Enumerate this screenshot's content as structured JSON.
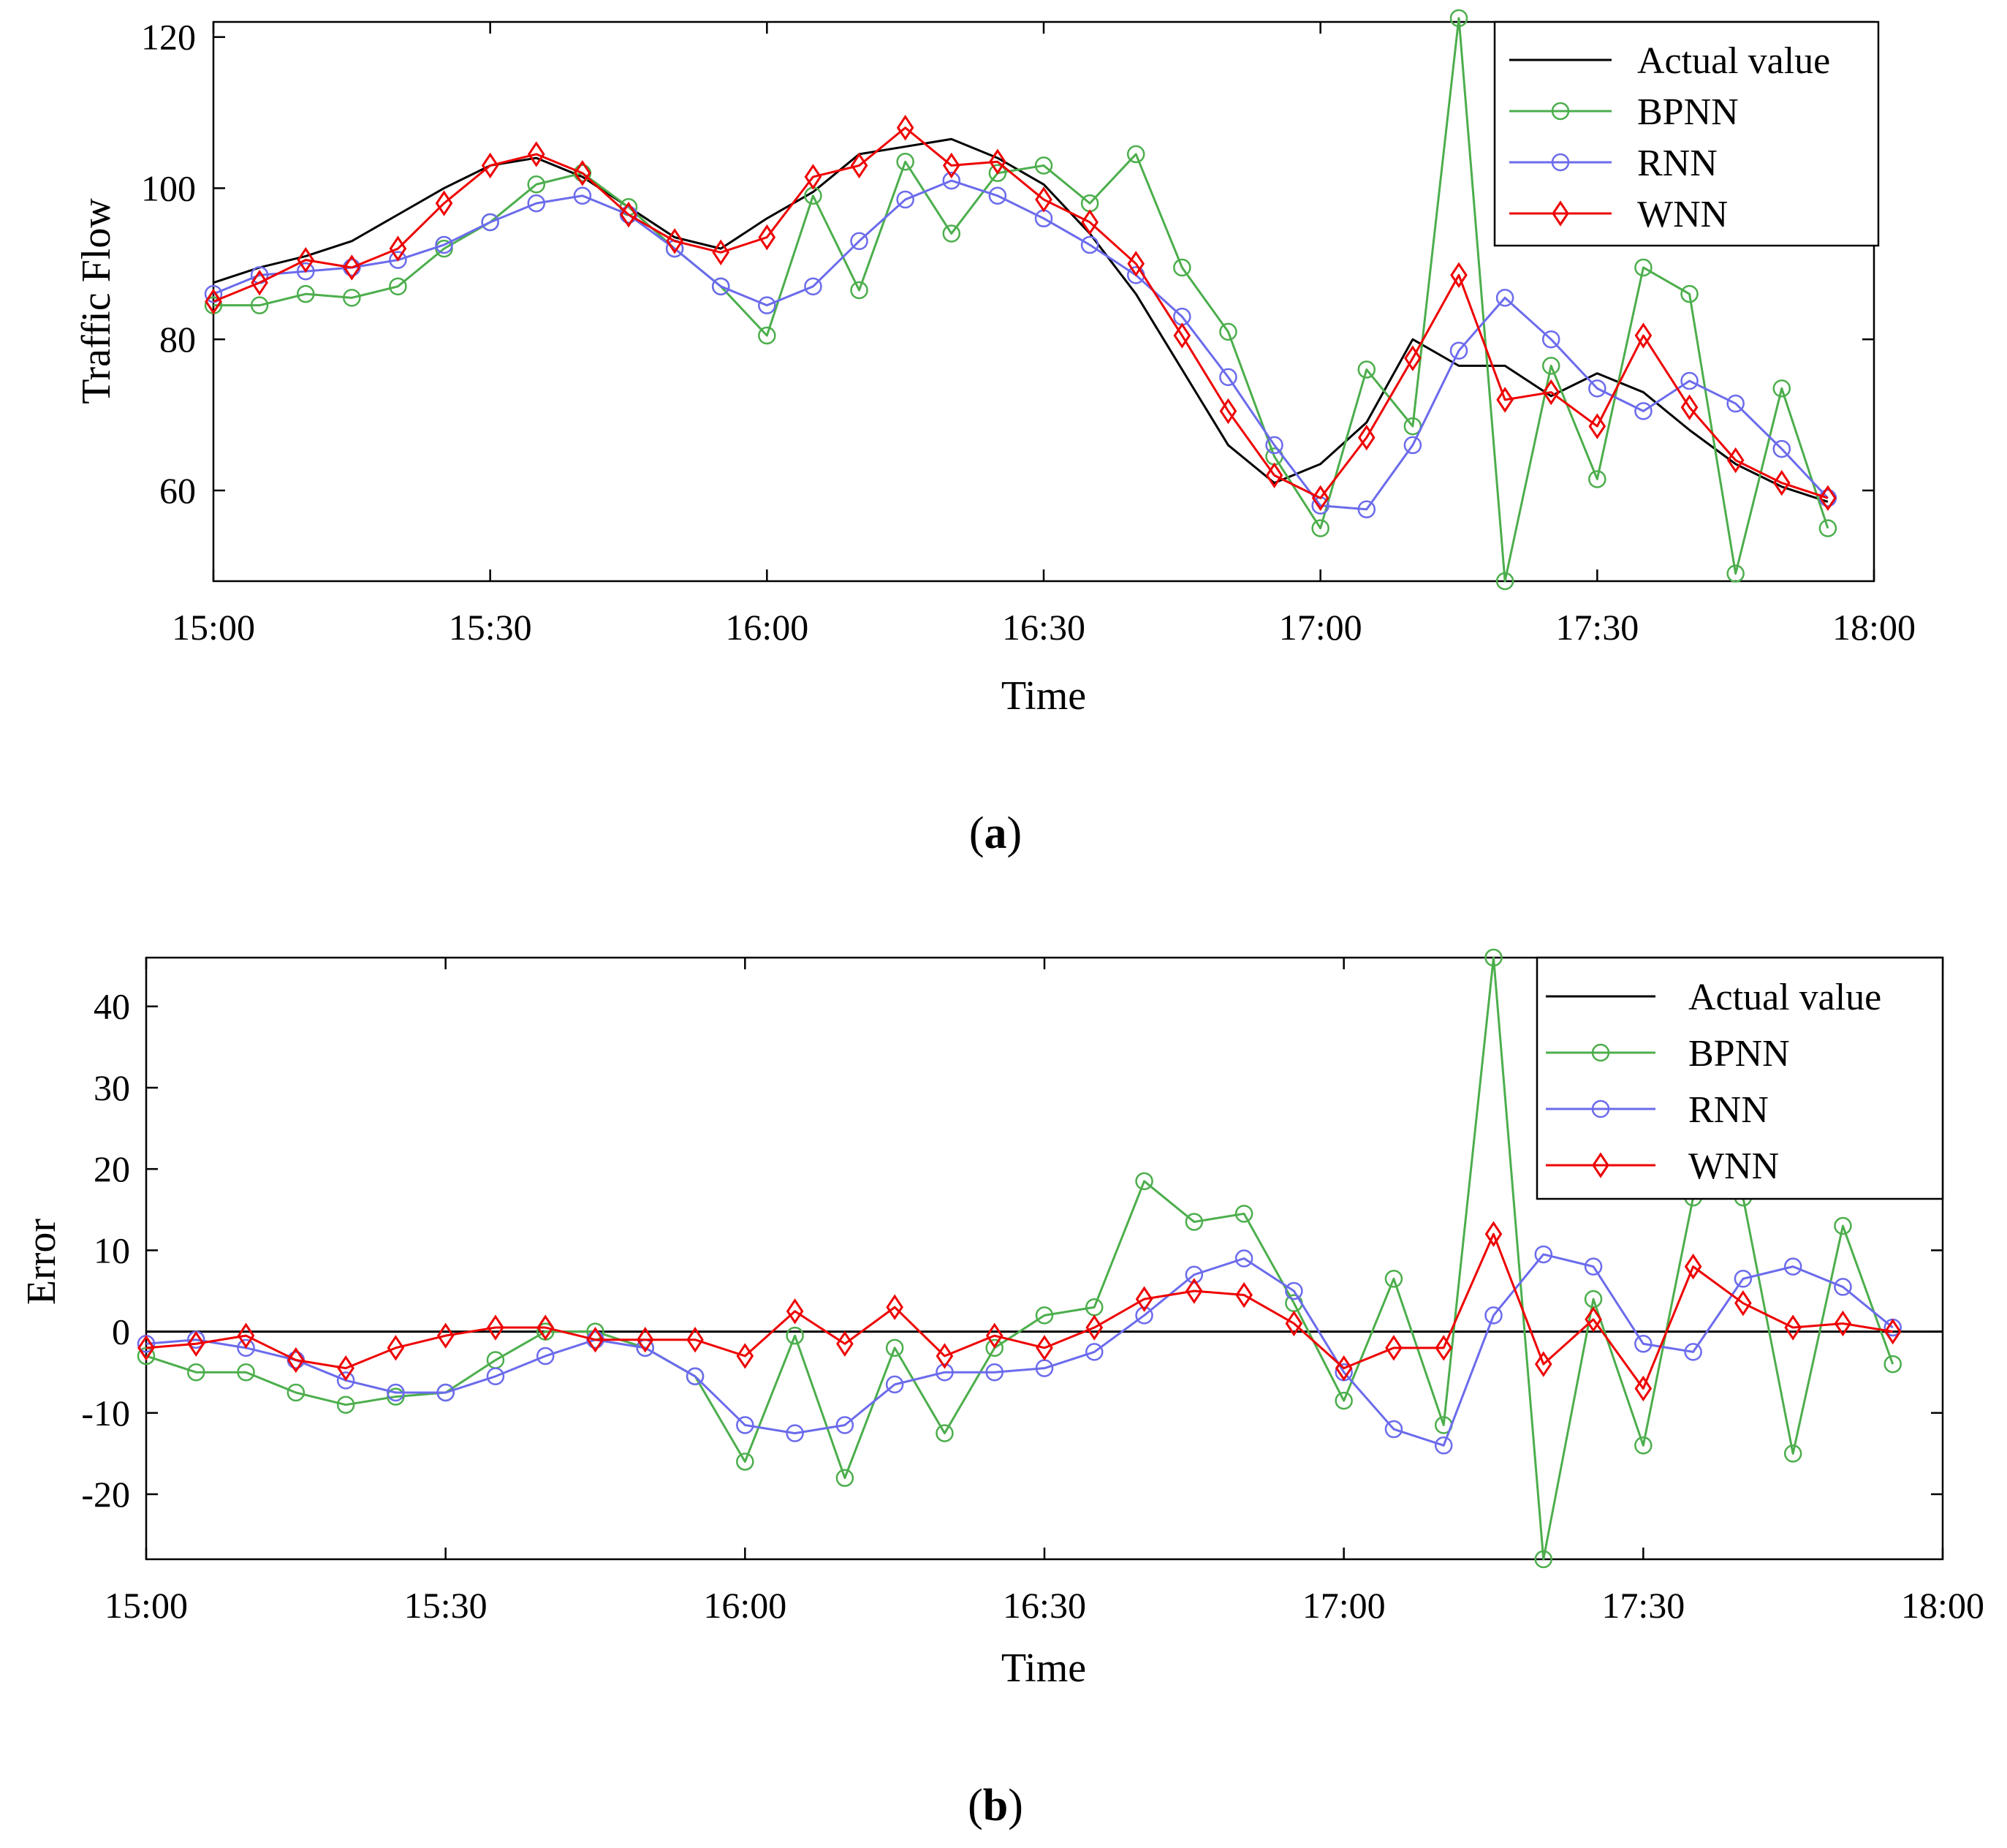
{
  "colors": {
    "actual": "#000000",
    "bpnn": "#4cae4c",
    "rnn": "#6b6bec",
    "wnn": "#ee0000"
  },
  "chart_data": [
    {
      "type": "line",
      "panel_label_open": "(",
      "panel_label_letter": "a",
      "panel_label_close": ")",
      "xlabel": "Time",
      "ylabel": "Traffic Flow",
      "xlim_minutes": [
        0,
        180
      ],
      "ylim": [
        48,
        122
      ],
      "xticks": [
        {
          "minutes": 0,
          "label": "15:00"
        },
        {
          "minutes": 30,
          "label": "15:30"
        },
        {
          "minutes": 60,
          "label": "16:00"
        },
        {
          "minutes": 90,
          "label": "16:30"
        },
        {
          "minutes": 120,
          "label": "17:00"
        },
        {
          "minutes": 150,
          "label": "17:30"
        },
        {
          "minutes": 180,
          "label": "18:00"
        }
      ],
      "yticks": [
        {
          "value": 60,
          "label": "60"
        },
        {
          "value": 80,
          "label": "80"
        },
        {
          "value": 100,
          "label": "100"
        },
        {
          "value": 120,
          "label": "120"
        }
      ],
      "legend_position": "top-right",
      "x_minutes": [
        0,
        5,
        10,
        15,
        20,
        25,
        30,
        35,
        40,
        45,
        50,
        55,
        60,
        65,
        70,
        75,
        80,
        85,
        90,
        95,
        100,
        105,
        110,
        115,
        120,
        125,
        130,
        135,
        140,
        145,
        150,
        155,
        160,
        165,
        170,
        175
      ],
      "series": [
        {
          "key": "actual",
          "name": "Actual value",
          "marker": "none",
          "values": [
            87.5,
            89.5,
            91,
            93,
            96.5,
            100,
            103,
            104,
            101.5,
            97.5,
            93.5,
            92,
            96,
            99.5,
            104.5,
            105.5,
            106.5,
            104,
            100.5,
            94,
            86,
            76,
            66,
            61,
            63.5,
            69,
            80,
            76.5,
            76.5,
            72.5,
            75.5,
            73,
            68,
            63.5,
            60.5,
            58.5
          ]
        },
        {
          "key": "bpnn",
          "name": "BPNN",
          "marker": "circle",
          "values": [
            84.5,
            84.5,
            86,
            85.5,
            87,
            92,
            95.5,
            100.5,
            102,
            97.5,
            92,
            87,
            80.5,
            99,
            86.5,
            103.5,
            94,
            102,
            103,
            98,
            104.5,
            89.5,
            81,
            64.5,
            55,
            76,
            68.5,
            122.5,
            48,
            76.5,
            61.5,
            89.5,
            86,
            49,
            73.5,
            55
          ]
        },
        {
          "key": "rnn",
          "name": "RNN",
          "marker": "circle",
          "values": [
            86,
            88.5,
            89,
            89.5,
            90.5,
            92.5,
            95.5,
            98,
            99,
            96.5,
            92,
            87,
            84.5,
            87,
            93,
            98.5,
            101,
            99,
            96,
            92.5,
            88.5,
            83,
            75,
            66,
            58,
            57.5,
            66,
            78.5,
            85.5,
            80,
            73.5,
            70.5,
            74.5,
            71.5,
            65.5,
            59
          ]
        },
        {
          "key": "wnn",
          "name": "WNN",
          "marker": "diamond",
          "values": [
            85,
            87.5,
            90.5,
            89.5,
            92,
            98,
            103,
            104.5,
            102,
            96.5,
            93,
            91.5,
            93.5,
            101.5,
            103,
            108,
            103,
            103.5,
            98.5,
            95.5,
            90,
            80.5,
            70.5,
            62,
            59,
            67,
            77.5,
            88.5,
            72,
            73,
            68.5,
            80.5,
            71,
            64,
            61,
            59
          ]
        }
      ]
    },
    {
      "type": "line",
      "panel_label_open": "(",
      "panel_label_letter": "b",
      "panel_label_close": ")",
      "xlabel": "Time",
      "ylabel": "Error",
      "xlim_minutes": [
        0,
        180
      ],
      "ylim": [
        -28,
        46
      ],
      "xticks": [
        {
          "minutes": 0,
          "label": "15:00"
        },
        {
          "minutes": 30,
          "label": "15:30"
        },
        {
          "minutes": 60,
          "label": "16:00"
        },
        {
          "minutes": 90,
          "label": "16:30"
        },
        {
          "minutes": 120,
          "label": "17:00"
        },
        {
          "minutes": 150,
          "label": "17:30"
        },
        {
          "minutes": 180,
          "label": "18:00"
        }
      ],
      "yticks": [
        {
          "value": -20,
          "label": "-20"
        },
        {
          "value": -10,
          "label": "-10"
        },
        {
          "value": 0,
          "label": "0"
        },
        {
          "value": 10,
          "label": "10"
        },
        {
          "value": 20,
          "label": "20"
        },
        {
          "value": 30,
          "label": "30"
        },
        {
          "value": 40,
          "label": "40"
        }
      ],
      "legend_position": "top-right",
      "x_minutes": [
        0,
        5,
        10,
        15,
        20,
        25,
        30,
        35,
        40,
        45,
        50,
        55,
        60,
        65,
        70,
        75,
        80,
        85,
        90,
        95,
        100,
        105,
        110,
        115,
        120,
        125,
        130,
        135,
        140,
        145,
        150,
        155,
        160,
        165,
        170,
        175
      ],
      "series": [
        {
          "key": "actual",
          "name": "Actual value",
          "marker": "none",
          "line_only": true,
          "values": [
            0,
            0
          ]
        },
        {
          "key": "bpnn",
          "name": "BPNN",
          "marker": "circle",
          "values": [
            -3,
            -5,
            -5,
            -7.5,
            -9,
            -8,
            -7.5,
            -3.5,
            0,
            0,
            -2,
            -5.5,
            -16,
            -0.5,
            -18,
            -2,
            -12.5,
            -2,
            2,
            3,
            18.5,
            13.5,
            14.5,
            3.5,
            -8.5,
            6.5,
            -11.5,
            46,
            -28,
            4,
            -14,
            16.5,
            16.5,
            -15,
            13,
            -4
          ]
        },
        {
          "key": "rnn",
          "name": "RNN",
          "marker": "circle",
          "values": [
            -1.5,
            -1,
            -2,
            -3.5,
            -6,
            -7.5,
            -7.5,
            -5.5,
            -3,
            -1,
            -2,
            -5.5,
            -11.5,
            -12.5,
            -11.5,
            -6.5,
            -5,
            -5,
            -4.5,
            -2.5,
            2,
            7,
            9,
            5,
            -5,
            -12,
            -14,
            2,
            9.5,
            8,
            -1.5,
            -2.5,
            6.5,
            8,
            5.5,
            0.5
          ]
        },
        {
          "key": "wnn",
          "name": "WNN",
          "marker": "diamond",
          "values": [
            -2,
            -1.5,
            -0.5,
            -3.5,
            -4.5,
            -2,
            -0.5,
            0.5,
            0.5,
            -1,
            -1,
            -1,
            -3,
            2.5,
            -1.5,
            3,
            -3,
            -0.5,
            -2,
            0.5,
            4,
            5,
            4.5,
            1,
            -4.5,
            -2,
            -2,
            12,
            -4,
            1.5,
            -7,
            8,
            3.5,
            0.5,
            1,
            0
          ]
        }
      ]
    }
  ]
}
